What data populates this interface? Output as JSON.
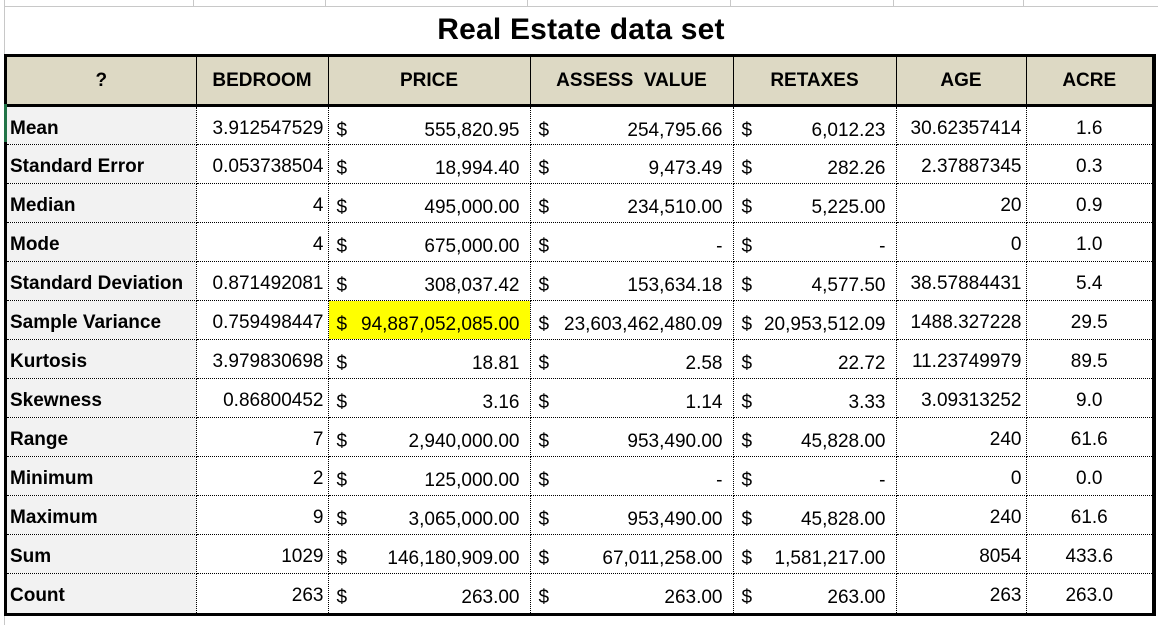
{
  "title": "Real Estate data set",
  "colors": {
    "header_bg": "#ddd9c4",
    "label_bg": "#f2f2f2",
    "highlight": "#ffff00"
  },
  "table": {
    "headers": [
      "?",
      "BEDROOM",
      "PRICE",
      "ASSESS  VALUE",
      "RETAXES",
      "AGE",
      "ACRE"
    ],
    "rows": [
      {
        "label": "Mean",
        "bedroom": "3.912547529",
        "price_sym": "$",
        "price": "555,820.95",
        "assess_sym": "$",
        "assess": "254,795.66",
        "retaxes_sym": "$",
        "retaxes": "6,012.23",
        "age": "30.62357414",
        "acre": "1.6"
      },
      {
        "label": "Standard Error",
        "bedroom": "0.053738504",
        "price_sym": "$",
        "price": "18,994.40",
        "assess_sym": "$",
        "assess": "9,473.49",
        "retaxes_sym": "$",
        "retaxes": "282.26",
        "age": "2.37887345",
        "acre": "0.3"
      },
      {
        "label": "Median",
        "bedroom": "4",
        "price_sym": "$",
        "price": "495,000.00",
        "assess_sym": "$",
        "assess": "234,510.00",
        "retaxes_sym": "$",
        "retaxes": "5,225.00",
        "age": "20",
        "acre": "0.9"
      },
      {
        "label": "Mode",
        "bedroom": "4",
        "price_sym": "$",
        "price": "675,000.00",
        "assess_sym": "$",
        "assess": "-",
        "retaxes_sym": "$",
        "retaxes": "-",
        "age": "0",
        "acre": "1.0"
      },
      {
        "label": "Standard Deviation",
        "bedroom": "0.871492081",
        "price_sym": "$",
        "price": "308,037.42",
        "assess_sym": "$",
        "assess": "153,634.18",
        "retaxes_sym": "$",
        "retaxes": "4,577.50",
        "age": "38.57884431",
        "acre": "5.4"
      },
      {
        "label": "Sample Variance",
        "bedroom": "0.759498447",
        "price_sym": "$",
        "price": "94,887,052,085.00",
        "assess_sym": "$",
        "assess": "23,603,462,480.09",
        "retaxes_sym": "$",
        "retaxes": "20,953,512.09",
        "age": "1488.327228",
        "acre": "29.5"
      },
      {
        "label": "Kurtosis",
        "bedroom": "3.979830698",
        "price_sym": "$",
        "price": "18.81",
        "assess_sym": "$",
        "assess": "2.58",
        "retaxes_sym": "$",
        "retaxes": "22.72",
        "age": "11.23749979",
        "acre": "89.5"
      },
      {
        "label": "Skewness",
        "bedroom": "0.86800452",
        "price_sym": "$",
        "price": "3.16",
        "assess_sym": "$",
        "assess": "1.14",
        "retaxes_sym": "$",
        "retaxes": "3.33",
        "age": "3.09313252",
        "acre": "9.0"
      },
      {
        "label": "Range",
        "bedroom": "7",
        "price_sym": "$",
        "price": "2,940,000.00",
        "assess_sym": "$",
        "assess": "953,490.00",
        "retaxes_sym": "$",
        "retaxes": "45,828.00",
        "age": "240",
        "acre": "61.6"
      },
      {
        "label": "Minimum",
        "bedroom": "2",
        "price_sym": "$",
        "price": "125,000.00",
        "assess_sym": "$",
        "assess": "-",
        "retaxes_sym": "$",
        "retaxes": "-",
        "age": "0",
        "acre": "0.0"
      },
      {
        "label": "Maximum",
        "bedroom": "9",
        "price_sym": "$",
        "price": "3,065,000.00",
        "assess_sym": "$",
        "assess": "953,490.00",
        "retaxes_sym": "$",
        "retaxes": "45,828.00",
        "age": "240",
        "acre": "61.6"
      },
      {
        "label": "Sum",
        "bedroom": "1029",
        "price_sym": "$",
        "price": "146,180,909.00",
        "assess_sym": "$",
        "assess": "67,011,258.00",
        "retaxes_sym": "$",
        "retaxes": "1,581,217.00",
        "age": "8054",
        "acre": "433.6"
      },
      {
        "label": "Count",
        "bedroom": "263",
        "price_sym": "$",
        "price": "263.00",
        "assess_sym": "$",
        "assess": "263.00",
        "retaxes_sym": "$",
        "retaxes": "263.00",
        "age": "263",
        "acre": "263.0"
      }
    ]
  }
}
